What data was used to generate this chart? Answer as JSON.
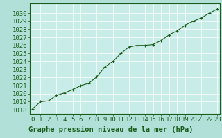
{
  "x": [
    0,
    1,
    2,
    3,
    4,
    5,
    6,
    7,
    8,
    9,
    10,
    11,
    12,
    13,
    14,
    15,
    16,
    17,
    18,
    19,
    20,
    21,
    22,
    23
  ],
  "y": [
    1018.1,
    1019.0,
    1019.1,
    1019.8,
    1020.1,
    1020.5,
    1021.0,
    1021.3,
    1022.1,
    1023.3,
    1024.0,
    1025.0,
    1025.8,
    1026.0,
    1026.0,
    1026.1,
    1026.6,
    1027.3,
    1027.8,
    1028.5,
    1029.0,
    1029.4,
    1030.0,
    1030.5
  ],
  "line_color": "#1a5c1a",
  "marker": "+",
  "marker_color": "#1a5c1a",
  "bg_color": "#b0e0d8",
  "plot_bg_color": "#c8ece8",
  "grid_color": "#ffffff",
  "xlabel": "Graphe pression niveau de la mer (hPa)",
  "xlabel_color": "#1a5c1a",
  "label_band_color": "#78b878",
  "tick_color": "#1a5c1a",
  "spine_color": "#1a5c1a",
  "ylim": [
    1017.5,
    1031.2
  ],
  "yticks": [
    1018,
    1019,
    1020,
    1021,
    1022,
    1023,
    1024,
    1025,
    1026,
    1027,
    1028,
    1029,
    1030
  ],
  "xticks": [
    0,
    1,
    2,
    3,
    4,
    5,
    6,
    7,
    8,
    9,
    10,
    11,
    12,
    13,
    14,
    15,
    16,
    17,
    18,
    19,
    20,
    21,
    22,
    23
  ],
  "xlim": [
    -0.3,
    23.3
  ],
  "xlabel_fontsize": 7.5,
  "tick_fontsize": 6.5,
  "linewidth": 0.8,
  "markersize": 3.5
}
